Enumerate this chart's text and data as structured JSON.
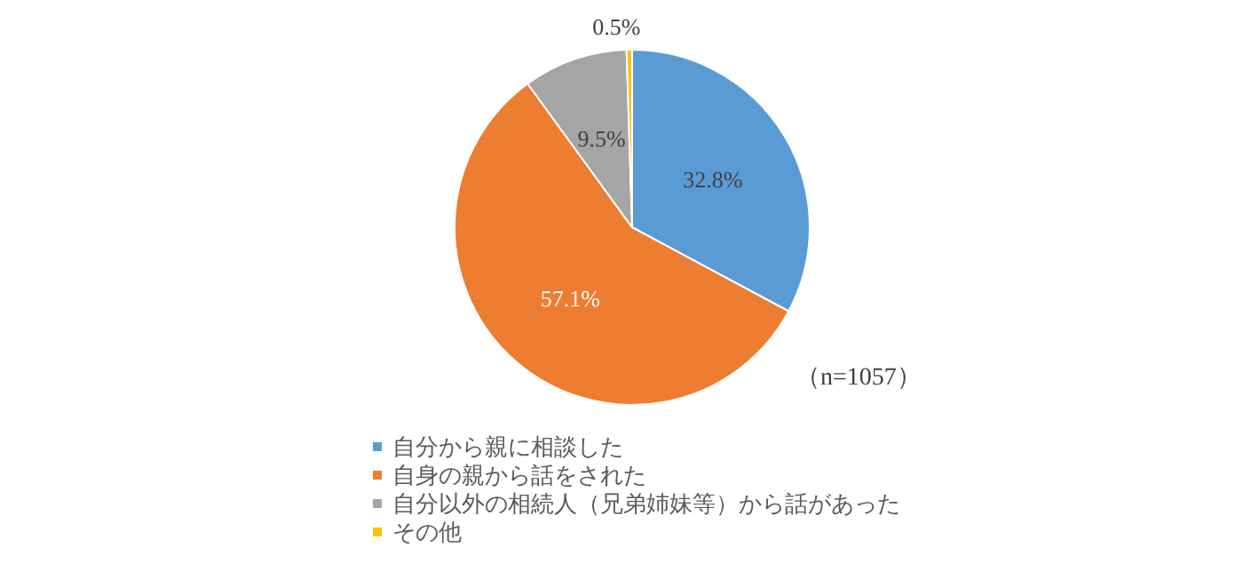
{
  "chart_data": {
    "type": "pie",
    "categories": [
      "自分から親に相談した",
      "自身の親から話をされた",
      "自分以外の相続人（兄弟姉妹等）から話があった",
      "その他"
    ],
    "values": [
      32.8,
      57.1,
      9.5,
      0.5
    ],
    "colors": [
      "#5b9bd5",
      "#ed7d31",
      "#a5a5a5",
      "#ffc000"
    ],
    "value_labels": [
      "32.8%",
      "57.1%",
      "9.5%",
      "0.5%"
    ],
    "legend": "bottom",
    "annotations": [
      "（n=1057）"
    ]
  }
}
